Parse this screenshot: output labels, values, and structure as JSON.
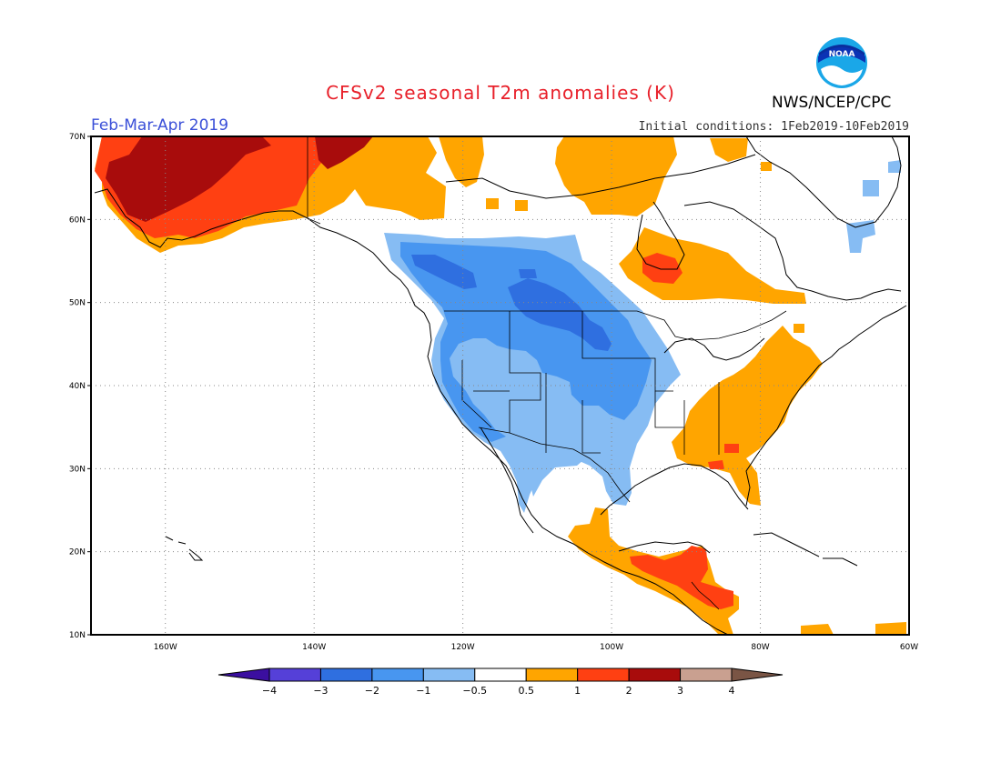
{
  "title": "CFSv2 seasonal T2m anomalies (K)",
  "season": "Feb-Mar-Apr 2019",
  "initial_conditions": "Initial conditions: 1Feb2019-10Feb2019",
  "organization": "NWS/NCEP/CPC",
  "logo_text": "NOAA",
  "map": {
    "lat_range": [
      10,
      70
    ],
    "lon_range": [
      -170,
      -60
    ],
    "lat_ticks": [
      {
        "v": 70,
        "label": "70N"
      },
      {
        "v": 60,
        "label": "60N"
      },
      {
        "v": 50,
        "label": "50N"
      },
      {
        "v": 40,
        "label": "40N"
      },
      {
        "v": 30,
        "label": "30N"
      },
      {
        "v": 20,
        "label": "20N"
      },
      {
        "v": 10,
        "label": "10N"
      }
    ],
    "lon_ticks": [
      {
        "v": -160,
        "label": "160W"
      },
      {
        "v": -140,
        "label": "140W"
      },
      {
        "v": -120,
        "label": "120W"
      },
      {
        "v": -100,
        "label": "100W"
      },
      {
        "v": -80,
        "label": "80W"
      },
      {
        "v": -60,
        "label": "60W"
      }
    ],
    "gridlines": true
  },
  "colorbar": {
    "colors": [
      "#3b0fa0",
      "#5540d8",
      "#2f6fe0",
      "#4896f0",
      "#86bcf3",
      "#ffffff",
      "#ffa500",
      "#ff4012",
      "#a80c0c",
      "#c9a090",
      "#7a5545"
    ],
    "labels": [
      "−4",
      "−3",
      "−2",
      "−1",
      "−0.5",
      "0.5",
      "1",
      "2",
      "3",
      "4"
    ]
  },
  "palette": {
    "nm3": "#2f6fe0",
    "nm2": "#4896f0",
    "nm1": "#86bcf3",
    "p1": "#ffa500",
    "p2": "#ff4012",
    "p3": "#a80c0c"
  }
}
